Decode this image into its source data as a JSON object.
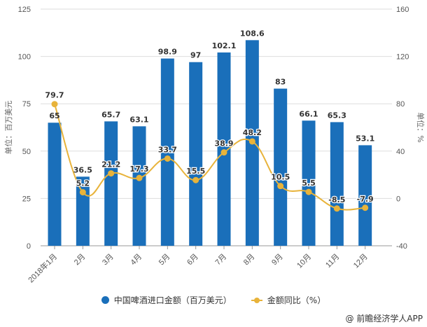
{
  "chart_data": {
    "type": "bar+line",
    "title": "",
    "categories": [
      "2018年1月",
      "2月",
      "3月",
      "4月",
      "5月",
      "6月",
      "7月",
      "8月",
      "9月",
      "10月",
      "11月",
      "12月"
    ],
    "series": [
      {
        "name": "中国啤酒进口金额（百万美元）",
        "type": "bar",
        "axis": "left",
        "color": "#1a6fba",
        "values": [
          65,
          36.5,
          65.7,
          63.1,
          98.9,
          97,
          102.1,
          108.6,
          83,
          66.1,
          65.3,
          53.1
        ]
      },
      {
        "name": "金额同比（%）",
        "type": "line",
        "axis": "right",
        "color": "#e8b33a",
        "values": [
          79.7,
          5.2,
          21.2,
          17.3,
          33.7,
          15.5,
          38.9,
          48.2,
          10.5,
          5.5,
          -8.5,
          -7.9
        ]
      }
    ],
    "left_axis": {
      "label": "单位：百万美元",
      "ylim": [
        0,
        125
      ],
      "ticks": [
        0,
        25,
        50,
        75,
        100,
        125
      ]
    },
    "right_axis": {
      "label": "单位：%",
      "ylim": [
        -40,
        160
      ],
      "ticks": [
        -40,
        0,
        40,
        80,
        120,
        160
      ]
    },
    "grid": true,
    "legend_position": "bottom-center"
  },
  "legend": {
    "bar_label": "中国啤酒进口金额（百万美元）",
    "line_label": "金额同比（%）"
  },
  "source": "@ 前瞻经济学人APP"
}
